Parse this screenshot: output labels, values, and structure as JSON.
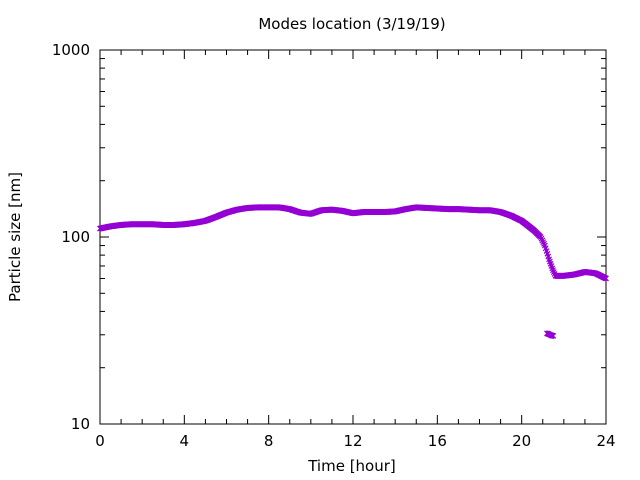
{
  "chart_data": {
    "type": "scatter",
    "title": "Modes location (3/19/19)",
    "xlabel": "Time [hour]",
    "ylabel": "Particle size [nm]",
    "xlim": [
      0,
      24
    ],
    "ylim": [
      10,
      1000
    ],
    "y_scale": "log",
    "x_ticks": [
      0,
      4,
      8,
      12,
      16,
      20,
      24
    ],
    "x_tick_labels": [
      "0",
      "4",
      "8",
      "12",
      "16",
      "20",
      "24"
    ],
    "y_ticks": [
      10,
      100,
      1000
    ],
    "y_tick_labels": [
      "10",
      "100",
      "1000"
    ],
    "grid": false,
    "legend": "none",
    "marker_color": "#9400d3",
    "series": [
      {
        "points": [
          [
            0.0,
            111
          ],
          [
            0.5,
            114
          ],
          [
            1.0,
            116
          ],
          [
            1.5,
            117
          ],
          [
            2.0,
            117
          ],
          [
            2.5,
            117
          ],
          [
            3.0,
            116
          ],
          [
            3.5,
            116
          ],
          [
            4.0,
            117
          ],
          [
            4.5,
            119
          ],
          [
            5.0,
            122
          ],
          [
            5.5,
            128
          ],
          [
            6.0,
            135
          ],
          [
            6.5,
            140
          ],
          [
            7.0,
            143
          ],
          [
            7.5,
            144
          ],
          [
            8.0,
            144
          ],
          [
            8.5,
            144
          ],
          [
            9.0,
            141
          ],
          [
            9.5,
            135
          ],
          [
            10.0,
            133
          ],
          [
            10.5,
            139
          ],
          [
            11.0,
            140
          ],
          [
            11.5,
            138
          ],
          [
            12.0,
            134
          ],
          [
            12.5,
            136
          ],
          [
            13.0,
            136
          ],
          [
            13.5,
            136
          ],
          [
            14.0,
            137
          ],
          [
            14.5,
            141
          ],
          [
            15.0,
            144
          ],
          [
            15.5,
            143
          ],
          [
            16.0,
            142
          ],
          [
            16.5,
            141
          ],
          [
            17.0,
            141
          ],
          [
            17.5,
            140
          ],
          [
            18.0,
            139
          ],
          [
            18.5,
            139
          ],
          [
            19.0,
            136
          ],
          [
            19.5,
            130
          ],
          [
            20.0,
            122
          ],
          [
            20.3,
            115
          ],
          [
            20.6,
            108
          ],
          [
            20.9,
            100
          ],
          [
            21.1,
            90
          ],
          [
            21.3,
            76
          ],
          [
            21.45,
            68
          ],
          [
            21.6,
            62
          ],
          [
            22.0,
            62
          ],
          [
            22.5,
            63
          ],
          [
            23.0,
            65
          ],
          [
            23.5,
            64
          ],
          [
            24.0,
            60
          ]
        ]
      },
      {
        "points": [
          [
            21.2,
            30.5
          ],
          [
            21.3,
            30.2
          ],
          [
            21.4,
            29.8
          ],
          [
            21.5,
            29.6
          ]
        ]
      }
    ]
  }
}
